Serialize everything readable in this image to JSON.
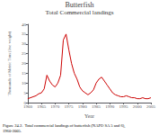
{
  "chart_data": {
    "type": "line",
    "title": "Butterfish",
    "subtitle": "Total Commercial landings",
    "xlabel": "Year",
    "ylabel": "Thousands of Metric Tons (live weight)",
    "caption": "Figure 24.2.  Total commercial landings of butterfish (NAFO SA 5 and 6),\n1960-2005.",
    "color": "#cc0000",
    "x": [
      1960,
      1961,
      1962,
      1963,
      1964,
      1965,
      1966,
      1967,
      1968,
      1969,
      1970,
      1971,
      1972,
      1973,
      1974,
      1975,
      1976,
      1977,
      1978,
      1979,
      1980,
      1981,
      1982,
      1983,
      1984,
      1985,
      1986,
      1987,
      1988,
      1989,
      1990,
      1991,
      1992,
      1993,
      1994,
      1995,
      1996,
      1997,
      1998,
      1999,
      2000,
      2001,
      2002,
      2003,
      2004,
      2005
    ],
    "values": [
      2.0,
      2.5,
      3.0,
      3.5,
      4.5,
      5.0,
      7.0,
      14.0,
      11.0,
      9.0,
      8.0,
      10.0,
      14.0,
      32.0,
      35.0,
      27.0,
      20.0,
      15.0,
      12.0,
      8.0,
      6.0,
      5.0,
      4.0,
      5.0,
      6.5,
      10.0,
      12.0,
      13.0,
      11.0,
      9.0,
      7.0,
      5.0,
      4.0,
      3.5,
      3.0,
      3.0,
      3.5,
      3.0,
      2.5,
      2.5,
      2.0,
      2.0,
      2.5,
      2.0,
      2.0,
      2.5
    ],
    "xlim": [
      1960,
      2005
    ],
    "ylim": [
      0,
      40
    ],
    "xticks": [
      1960,
      1965,
      1970,
      1975,
      1980,
      1985,
      1990,
      1995,
      2000,
      2005
    ],
    "yticks": [
      0,
      5,
      10,
      15,
      20,
      25,
      30,
      35,
      40
    ],
    "grid": false
  }
}
